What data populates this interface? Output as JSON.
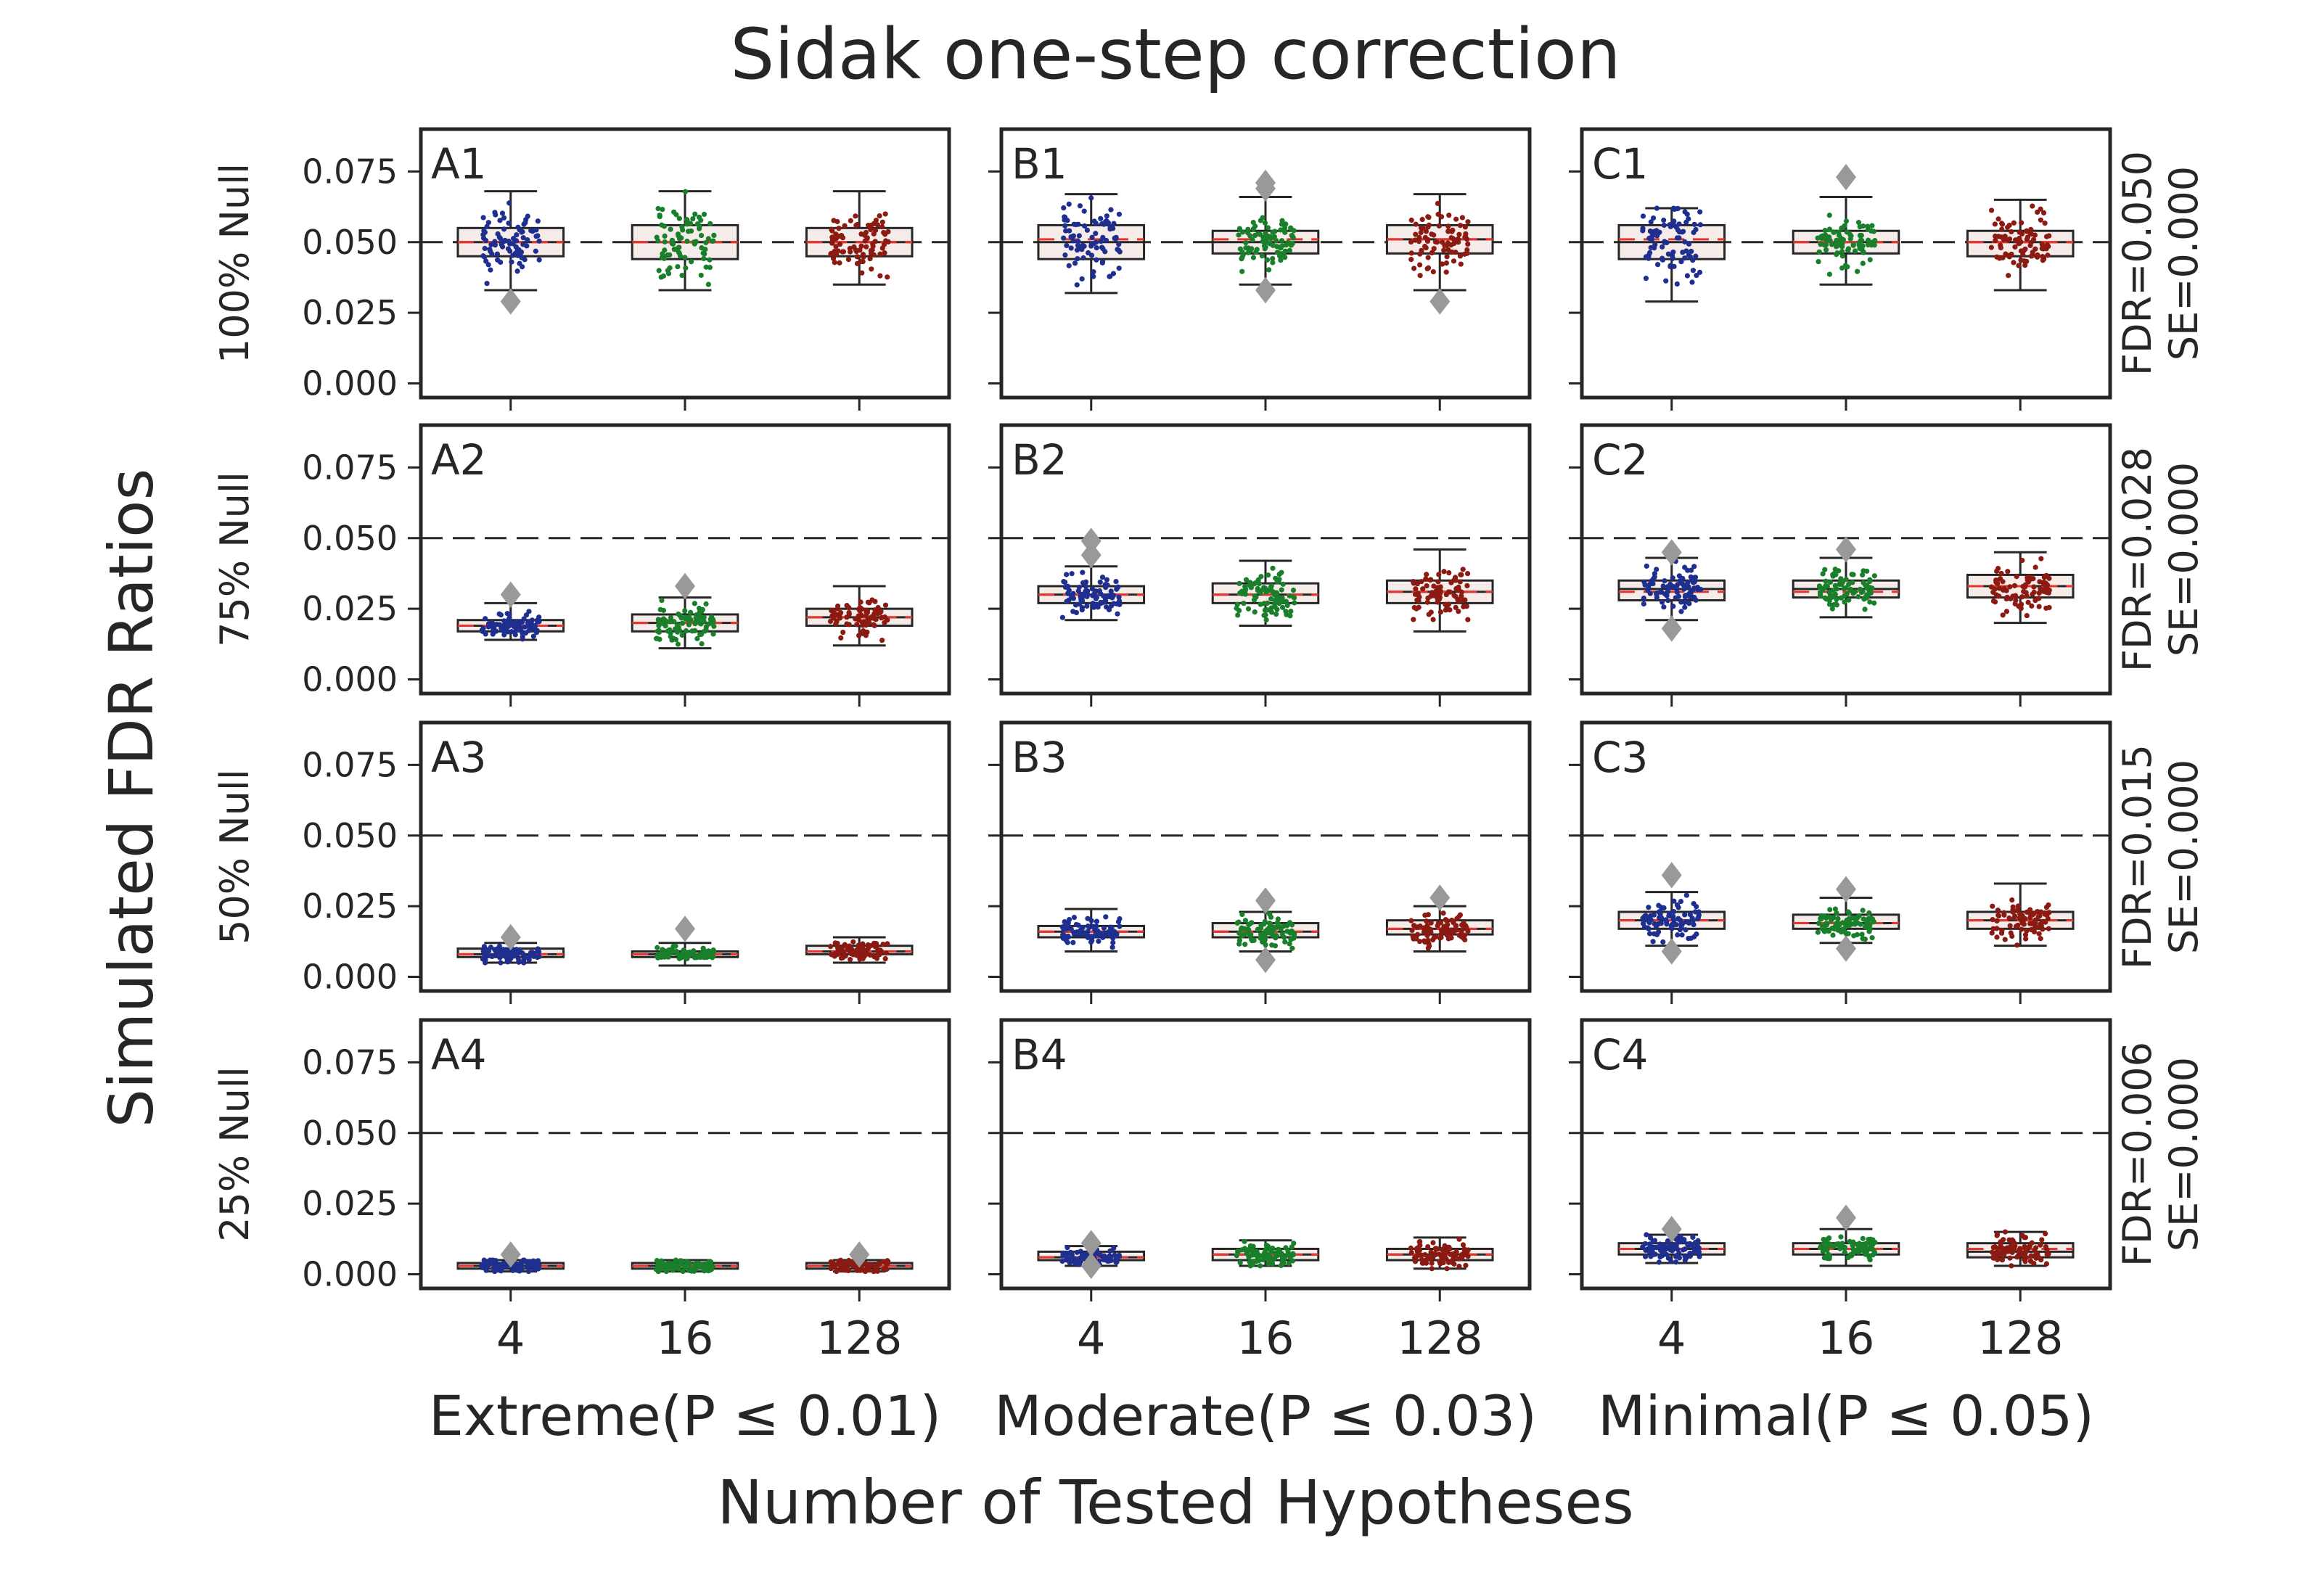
{
  "chart_data": {
    "type": "box",
    "title": "Sidak one-step correction",
    "ylabel": "Simulated FDR Ratios",
    "xlabel": "Number of Tested Hypotheses",
    "ylim": [
      -0.005,
      0.09
    ],
    "yticks": [
      "0.000",
      "0.025",
      "0.050",
      "0.075"
    ],
    "ytick_values": [
      0,
      0.025,
      0.05,
      0.075
    ],
    "reference_line": 0.05,
    "categories": [
      "4",
      "16",
      "128"
    ],
    "group_colors": [
      "#1f2f8f",
      "#1a7f2a",
      "#8b1a12"
    ],
    "columns": [
      "Extreme(P ≤ 0.01)",
      "Moderate(P ≤ 0.03)",
      "Minimal(P ≤ 0.05)"
    ],
    "rows": [
      {
        "label": "100% Null",
        "annotation_fdr": "FDR=0.050",
        "annotation_se": "SE=0.000"
      },
      {
        "label": "75% Null",
        "annotation_fdr": "FDR=0.028",
        "annotation_se": "SE=0.000"
      },
      {
        "label": "50% Null",
        "annotation_fdr": "FDR=0.015",
        "annotation_se": "SE=0.000"
      },
      {
        "label": "25% Null",
        "annotation_fdr": "FDR=0.006",
        "annotation_se": "SE=0.000"
      }
    ],
    "panels": [
      {
        "id": "A1",
        "row": 0,
        "col": 0,
        "boxes": [
          {
            "category": "4",
            "q1": 0.045,
            "median": 0.05,
            "q3": 0.055,
            "mean": 0.05,
            "whisker_low": 0.033,
            "whisker_high": 0.068,
            "outliers": [
              0.029
            ]
          },
          {
            "category": "16",
            "q1": 0.044,
            "median": 0.05,
            "q3": 0.056,
            "mean": 0.05,
            "whisker_low": 0.033,
            "whisker_high": 0.068,
            "outliers": []
          },
          {
            "category": "128",
            "q1": 0.045,
            "median": 0.05,
            "q3": 0.055,
            "mean": 0.05,
            "whisker_low": 0.035,
            "whisker_high": 0.068,
            "outliers": []
          }
        ]
      },
      {
        "id": "B1",
        "row": 0,
        "col": 1,
        "boxes": [
          {
            "category": "4",
            "q1": 0.044,
            "median": 0.05,
            "q3": 0.056,
            "mean": 0.051,
            "whisker_low": 0.032,
            "whisker_high": 0.067,
            "outliers": []
          },
          {
            "category": "16",
            "q1": 0.046,
            "median": 0.05,
            "q3": 0.054,
            "mean": 0.051,
            "whisker_low": 0.035,
            "whisker_high": 0.066,
            "outliers": [
              0.071,
              0.069,
              0.033
            ]
          },
          {
            "category": "128",
            "q1": 0.046,
            "median": 0.051,
            "q3": 0.056,
            "mean": 0.051,
            "whisker_low": 0.033,
            "whisker_high": 0.067,
            "outliers": [
              0.029
            ]
          }
        ]
      },
      {
        "id": "C1",
        "row": 0,
        "col": 2,
        "boxes": [
          {
            "category": "4",
            "q1": 0.044,
            "median": 0.05,
            "q3": 0.056,
            "mean": 0.051,
            "whisker_low": 0.029,
            "whisker_high": 0.062,
            "outliers": []
          },
          {
            "category": "16",
            "q1": 0.046,
            "median": 0.05,
            "q3": 0.054,
            "mean": 0.05,
            "whisker_low": 0.035,
            "whisker_high": 0.066,
            "outliers": [
              0.073
            ]
          },
          {
            "category": "128",
            "q1": 0.045,
            "median": 0.05,
            "q3": 0.054,
            "mean": 0.05,
            "whisker_low": 0.033,
            "whisker_high": 0.065,
            "outliers": []
          }
        ]
      },
      {
        "id": "A2",
        "row": 1,
        "col": 0,
        "boxes": [
          {
            "category": "4",
            "q1": 0.017,
            "median": 0.019,
            "q3": 0.021,
            "mean": 0.019,
            "whisker_low": 0.014,
            "whisker_high": 0.027,
            "outliers": [
              0.03
            ]
          },
          {
            "category": "16",
            "q1": 0.017,
            "median": 0.02,
            "q3": 0.023,
            "mean": 0.02,
            "whisker_low": 0.011,
            "whisker_high": 0.029,
            "outliers": [
              0.033
            ]
          },
          {
            "category": "128",
            "q1": 0.019,
            "median": 0.022,
            "q3": 0.025,
            "mean": 0.022,
            "whisker_low": 0.012,
            "whisker_high": 0.033,
            "outliers": []
          }
        ]
      },
      {
        "id": "B2",
        "row": 1,
        "col": 1,
        "boxes": [
          {
            "category": "4",
            "q1": 0.027,
            "median": 0.03,
            "q3": 0.033,
            "mean": 0.03,
            "whisker_low": 0.021,
            "whisker_high": 0.04,
            "outliers": [
              0.049,
              0.044
            ]
          },
          {
            "category": "16",
            "q1": 0.027,
            "median": 0.03,
            "q3": 0.034,
            "mean": 0.03,
            "whisker_low": 0.019,
            "whisker_high": 0.042,
            "outliers": []
          },
          {
            "category": "128",
            "q1": 0.027,
            "median": 0.031,
            "q3": 0.035,
            "mean": 0.031,
            "whisker_low": 0.017,
            "whisker_high": 0.046,
            "outliers": []
          }
        ]
      },
      {
        "id": "C2",
        "row": 1,
        "col": 2,
        "boxes": [
          {
            "category": "4",
            "q1": 0.028,
            "median": 0.032,
            "q3": 0.035,
            "mean": 0.031,
            "whisker_low": 0.021,
            "whisker_high": 0.043,
            "outliers": [
              0.045,
              0.018
            ]
          },
          {
            "category": "16",
            "q1": 0.029,
            "median": 0.032,
            "q3": 0.035,
            "mean": 0.031,
            "whisker_low": 0.022,
            "whisker_high": 0.043,
            "outliers": [
              0.046
            ]
          },
          {
            "category": "128",
            "q1": 0.029,
            "median": 0.033,
            "q3": 0.037,
            "mean": 0.033,
            "whisker_low": 0.02,
            "whisker_high": 0.045,
            "outliers": []
          }
        ]
      },
      {
        "id": "A3",
        "row": 2,
        "col": 0,
        "boxes": [
          {
            "category": "4",
            "q1": 0.007,
            "median": 0.008,
            "q3": 0.01,
            "mean": 0.008,
            "whisker_low": 0.005,
            "whisker_high": 0.012,
            "outliers": [
              0.014
            ]
          },
          {
            "category": "16",
            "q1": 0.007,
            "median": 0.008,
            "q3": 0.009,
            "mean": 0.008,
            "whisker_low": 0.004,
            "whisker_high": 0.012,
            "outliers": [
              0.017
            ]
          },
          {
            "category": "128",
            "q1": 0.008,
            "median": 0.009,
            "q3": 0.011,
            "mean": 0.009,
            "whisker_low": 0.005,
            "whisker_high": 0.014,
            "outliers": []
          }
        ]
      },
      {
        "id": "B3",
        "row": 2,
        "col": 1,
        "boxes": [
          {
            "category": "4",
            "q1": 0.014,
            "median": 0.016,
            "q3": 0.018,
            "mean": 0.016,
            "whisker_low": 0.009,
            "whisker_high": 0.024,
            "outliers": []
          },
          {
            "category": "16",
            "q1": 0.014,
            "median": 0.016,
            "q3": 0.019,
            "mean": 0.016,
            "whisker_low": 0.009,
            "whisker_high": 0.023,
            "outliers": [
              0.027,
              0.006
            ]
          },
          {
            "category": "128",
            "q1": 0.015,
            "median": 0.017,
            "q3": 0.02,
            "mean": 0.017,
            "whisker_low": 0.009,
            "whisker_high": 0.025,
            "outliers": [
              0.028
            ]
          }
        ]
      },
      {
        "id": "C3",
        "row": 2,
        "col": 2,
        "boxes": [
          {
            "category": "4",
            "q1": 0.017,
            "median": 0.02,
            "q3": 0.023,
            "mean": 0.02,
            "whisker_low": 0.011,
            "whisker_high": 0.03,
            "outliers": [
              0.036,
              0.009
            ]
          },
          {
            "category": "16",
            "q1": 0.017,
            "median": 0.019,
            "q3": 0.022,
            "mean": 0.019,
            "whisker_low": 0.012,
            "whisker_high": 0.028,
            "outliers": [
              0.031,
              0.01
            ]
          },
          {
            "category": "128",
            "q1": 0.017,
            "median": 0.02,
            "q3": 0.023,
            "mean": 0.02,
            "whisker_low": 0.011,
            "whisker_high": 0.033,
            "outliers": []
          }
        ]
      },
      {
        "id": "A4",
        "row": 3,
        "col": 0,
        "boxes": [
          {
            "category": "4",
            "q1": 0.002,
            "median": 0.003,
            "q3": 0.004,
            "mean": 0.003,
            "whisker_low": 0.001,
            "whisker_high": 0.005,
            "outliers": [
              0.007
            ]
          },
          {
            "category": "16",
            "q1": 0.002,
            "median": 0.003,
            "q3": 0.004,
            "mean": 0.003,
            "whisker_low": 0.001,
            "whisker_high": 0.005,
            "outliers": []
          },
          {
            "category": "128",
            "q1": 0.002,
            "median": 0.003,
            "q3": 0.004,
            "mean": 0.003,
            "whisker_low": 0.001,
            "whisker_high": 0.005,
            "outliers": [
              0.007
            ]
          }
        ]
      },
      {
        "id": "B4",
        "row": 3,
        "col": 1,
        "boxes": [
          {
            "category": "4",
            "q1": 0.005,
            "median": 0.006,
            "q3": 0.008,
            "mean": 0.006,
            "whisker_low": 0.003,
            "whisker_high": 0.01,
            "outliers": [
              0.011,
              0.003
            ]
          },
          {
            "category": "16",
            "q1": 0.005,
            "median": 0.007,
            "q3": 0.009,
            "mean": 0.007,
            "whisker_low": 0.003,
            "whisker_high": 0.012,
            "outliers": []
          },
          {
            "category": "128",
            "q1": 0.005,
            "median": 0.007,
            "q3": 0.009,
            "mean": 0.007,
            "whisker_low": 0.002,
            "whisker_high": 0.013,
            "outliers": []
          }
        ]
      },
      {
        "id": "C4",
        "row": 3,
        "col": 2,
        "boxes": [
          {
            "category": "4",
            "q1": 0.007,
            "median": 0.009,
            "q3": 0.011,
            "mean": 0.009,
            "whisker_low": 0.004,
            "whisker_high": 0.014,
            "outliers": [
              0.016
            ]
          },
          {
            "category": "16",
            "q1": 0.007,
            "median": 0.009,
            "q3": 0.011,
            "mean": 0.009,
            "whisker_low": 0.003,
            "whisker_high": 0.016,
            "outliers": [
              0.02
            ]
          },
          {
            "category": "128",
            "q1": 0.006,
            "median": 0.008,
            "q3": 0.011,
            "mean": 0.009,
            "whisker_low": 0.003,
            "whisker_high": 0.015,
            "outliers": []
          }
        ]
      }
    ]
  }
}
